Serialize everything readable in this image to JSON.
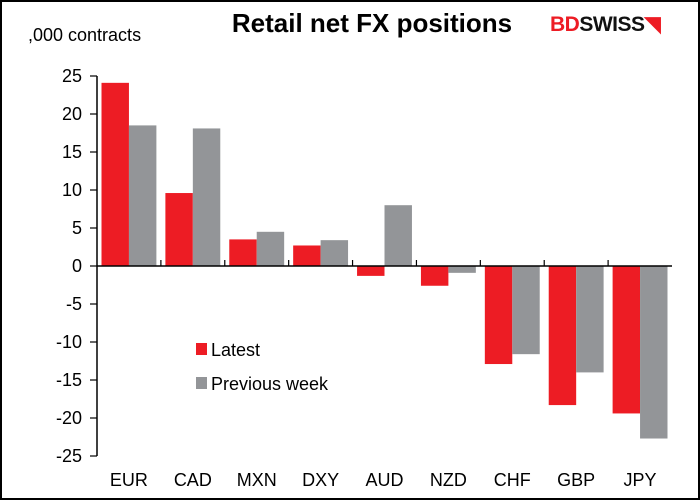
{
  "chart_data": {
    "type": "bar",
    "title": "Retail net FX positions",
    "ylabel": ",000 contracts",
    "xlabel": "",
    "categories": [
      "EUR",
      "CAD",
      "MXN",
      "DXY",
      "AUD",
      "NZD",
      "CHF",
      "GBP",
      "JPY"
    ],
    "series": [
      {
        "name": "Latest",
        "color": "#ed1c24",
        "values": [
          24.1,
          9.6,
          3.5,
          2.7,
          -1.3,
          -2.6,
          -12.9,
          -18.3,
          -19.4
        ]
      },
      {
        "name": "Previous week",
        "color": "#939598",
        "values": [
          18.5,
          18.1,
          4.5,
          3.4,
          8.0,
          -0.9,
          -11.6,
          -14.0,
          -22.7
        ]
      }
    ],
    "ylim": [
      -25,
      25
    ],
    "yticks": [
      25,
      20,
      15,
      10,
      5,
      0,
      -5,
      -10,
      -15,
      -20,
      -25
    ],
    "grid": false,
    "legend_position": "center-left"
  },
  "logo": {
    "part1": "BD",
    "part2": "SWISS"
  }
}
